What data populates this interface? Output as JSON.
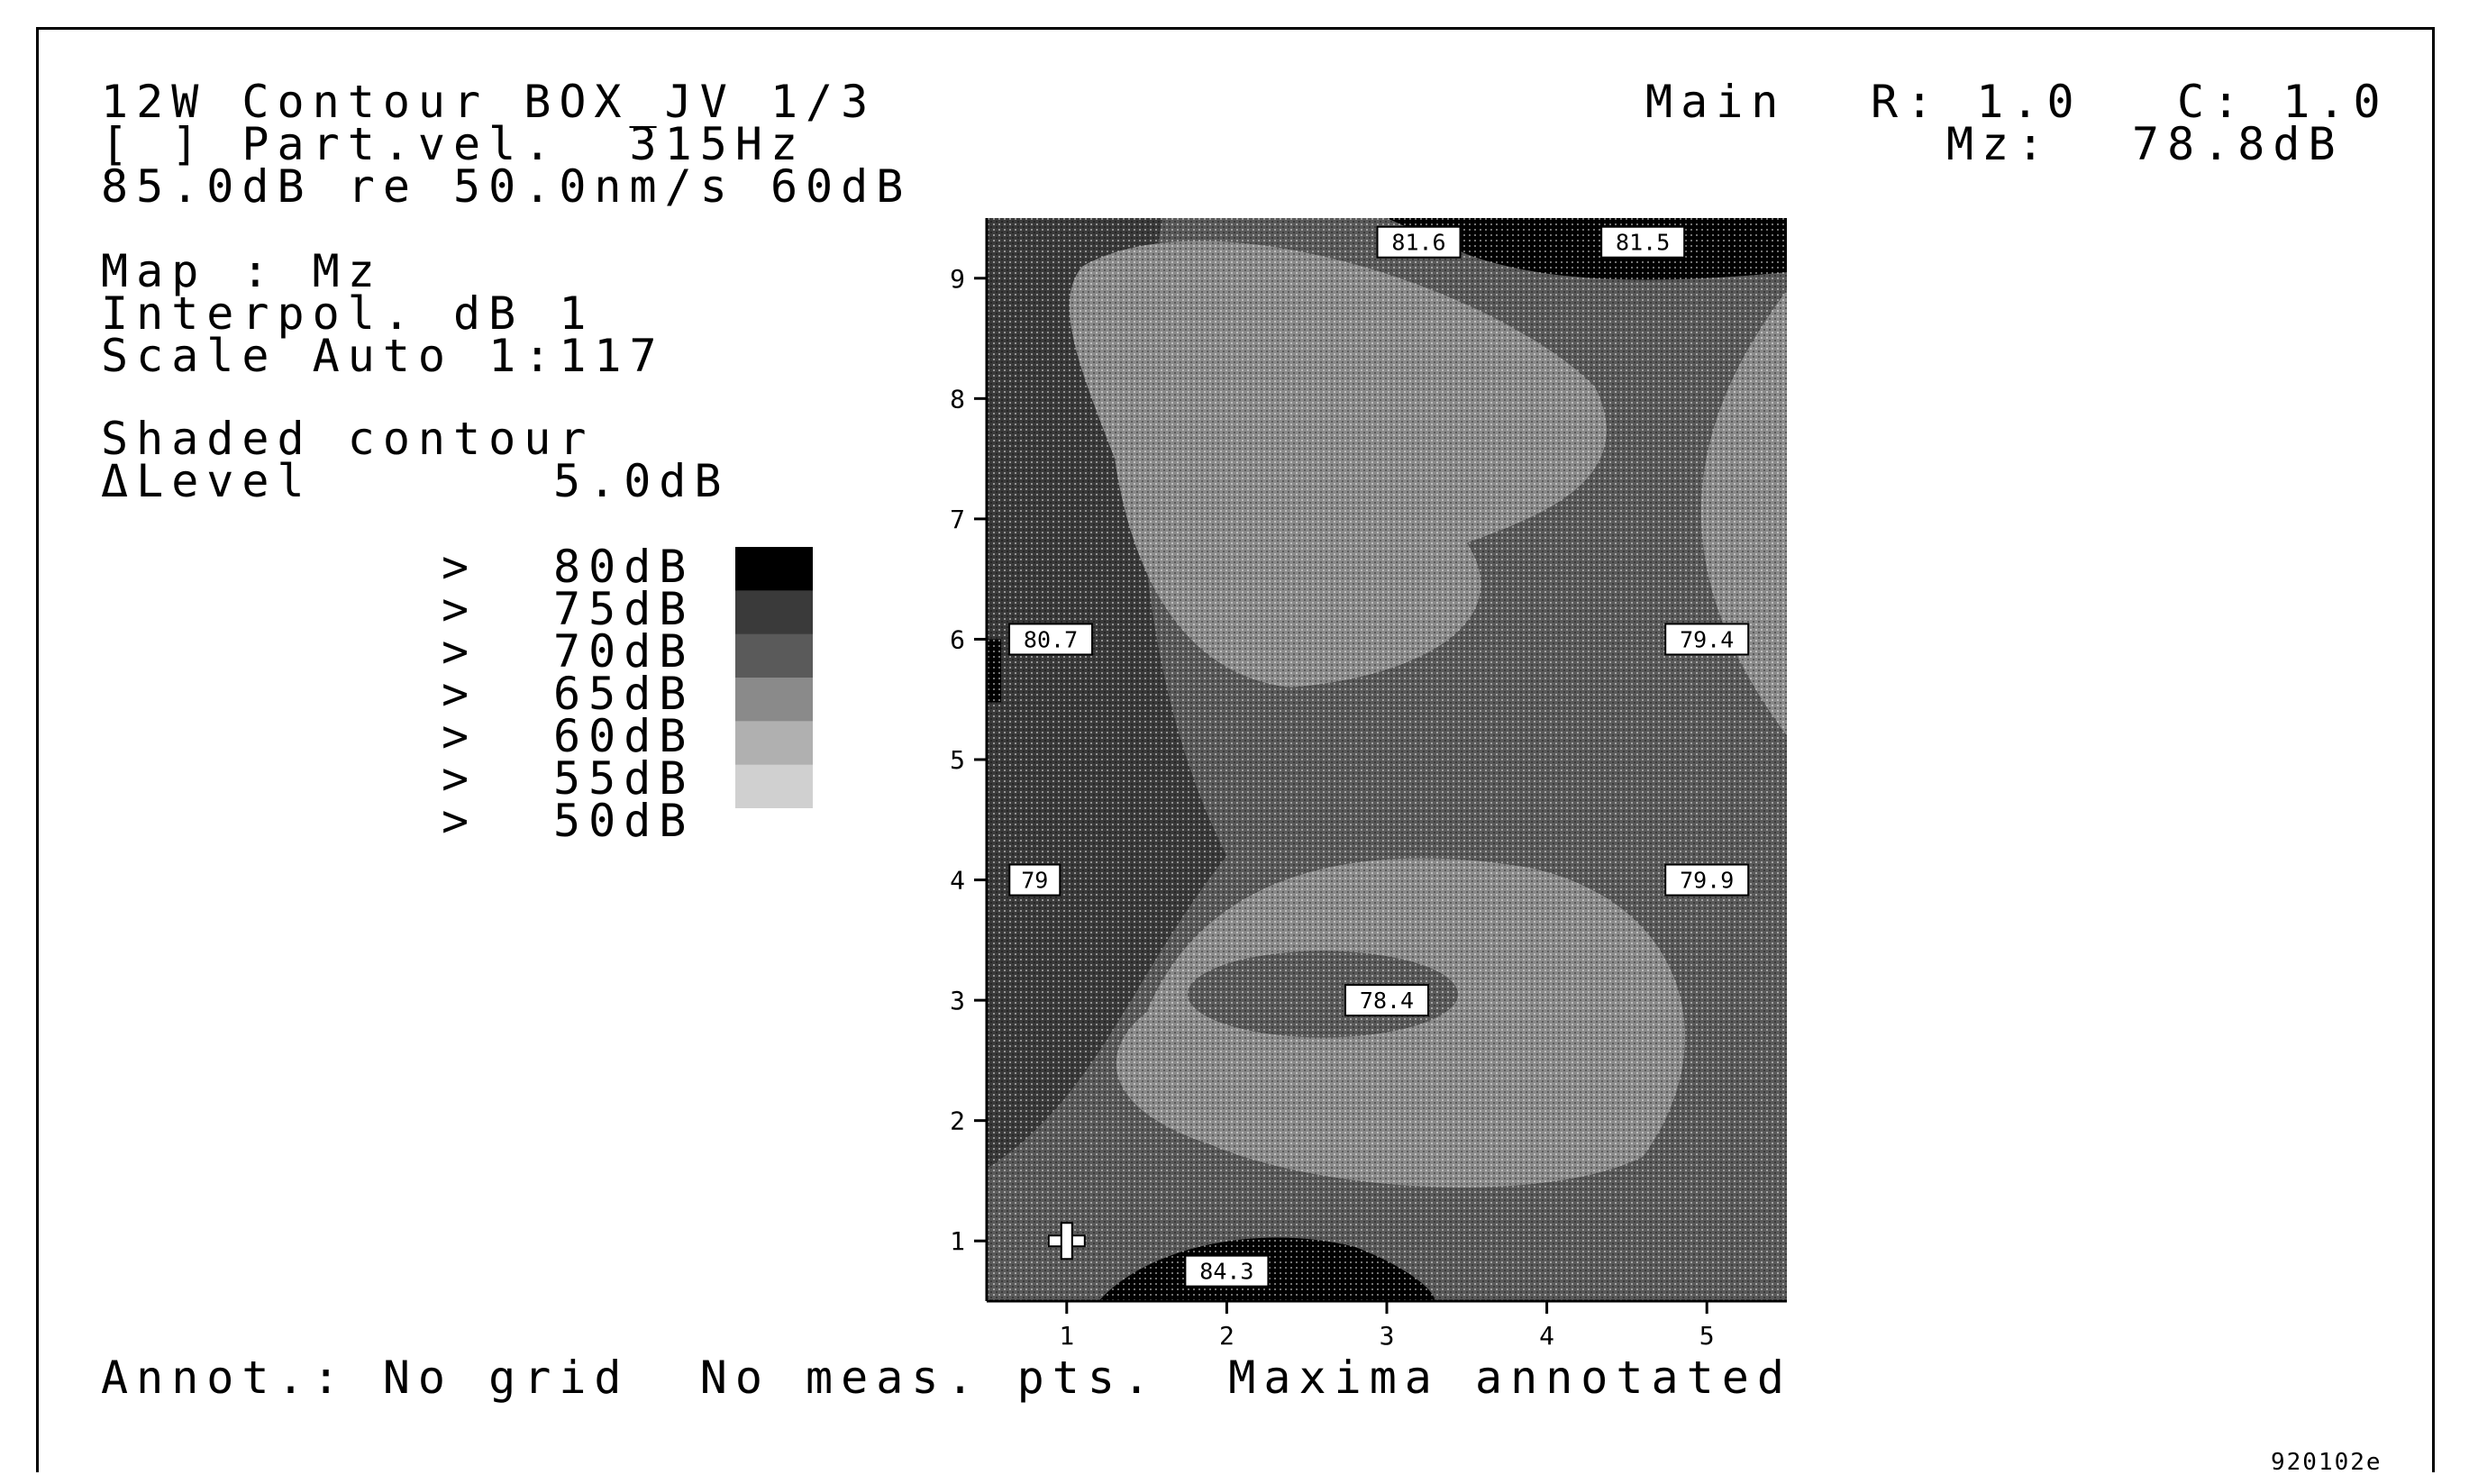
{
  "header": {
    "line1": "12W Contour BOX_JV 1/3",
    "line2": "[ ] Part.vel.  315Hz",
    "line3": "85.0dB re 50.0nm/s 60dB",
    "main_label": "Main",
    "r_label": "R: 1.0",
    "c_label": "C: 1.0",
    "mz_label": "Mz:",
    "mz_value": "78.8dB"
  },
  "settings": {
    "map": "Map : Mz",
    "interpol": "Interpol. dB 1",
    "scale": "Scale Auto 1:117",
    "shaded": "Shaded contour",
    "delta_level_label": "ΔLevel",
    "delta_level_value": "5.0dB"
  },
  "legend": {
    "marker": ">",
    "levels": [
      "80dB",
      "75dB",
      "70dB",
      "65dB",
      "60dB",
      "55dB",
      "50dB"
    ],
    "swatch_colors": [
      "#000000",
      "#3a3a3a",
      "#5a5a5a",
      "#8a8a8a",
      "#b0b0b0",
      "#d0d0d0"
    ]
  },
  "footer": {
    "annot": "Annot.: No grid  No meas. pts.  Maxima annotated",
    "code": "920102e"
  },
  "chart_data": {
    "type": "heatmap",
    "title": "12W Contour BOX_JV 1/3",
    "xlabel": "",
    "ylabel": "",
    "x_ticks": [
      "1",
      "2",
      "3",
      "4",
      "5"
    ],
    "y_ticks": [
      "1",
      "2",
      "3",
      "4",
      "5",
      "6",
      "7",
      "8",
      "9"
    ],
    "xlim": [
      0.5,
      5.5
    ],
    "ylim": [
      0.5,
      9.5
    ],
    "grid": false,
    "colors": {
      "lvl80": "#000000",
      "lvl75": "#3a3a3a",
      "lvl70": "#5a5a5a",
      "lvl65": "#8a8a8a"
    },
    "maxima": [
      {
        "x": 3.2,
        "y": 9.3,
        "label": "81.6"
      },
      {
        "x": 4.6,
        "y": 9.3,
        "label": "81.5"
      },
      {
        "x": 0.9,
        "y": 6.0,
        "label": "80.7"
      },
      {
        "x": 5.0,
        "y": 6.0,
        "label": "79.4"
      },
      {
        "x": 0.8,
        "y": 4.0,
        "label": "79"
      },
      {
        "x": 5.0,
        "y": 4.0,
        "label": "79.9"
      },
      {
        "x": 3.0,
        "y": 3.0,
        "label": "78.4"
      },
      {
        "x": 2.0,
        "y": 0.75,
        "label": "84.3"
      }
    ],
    "cursor": {
      "x": 1.0,
      "y": 1.0
    }
  }
}
